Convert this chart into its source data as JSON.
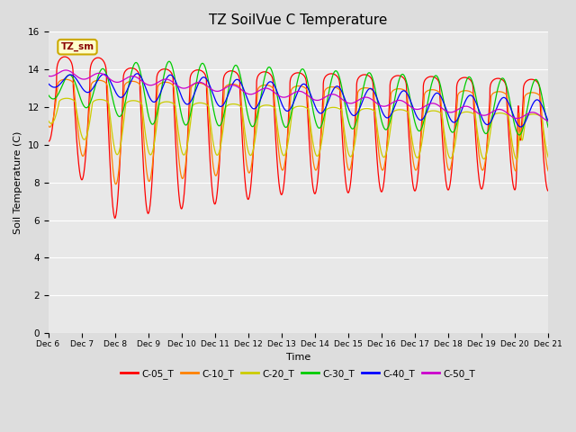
{
  "title": "TZ SoilVue C Temperature",
  "xlabel": "Time",
  "ylabel": "Soil Temperature (C)",
  "ylim": [
    0,
    16
  ],
  "yticks": [
    0,
    2,
    4,
    6,
    8,
    10,
    12,
    14,
    16
  ],
  "plot_bg_color": "#e8e8e8",
  "axes_bg_color": "#dcdcdc",
  "series_colors": {
    "C-05_T": "#ff0000",
    "C-10_T": "#ff8000",
    "C-20_T": "#cccc00",
    "C-30_T": "#00cc00",
    "C-40_T": "#0000ff",
    "C-50_T": "#cc00cc"
  },
  "legend_label": "TZ_sm",
  "legend_box_color": "#ffffcc",
  "legend_box_edge": "#ccaa00",
  "legend_text_color": "#880000"
}
